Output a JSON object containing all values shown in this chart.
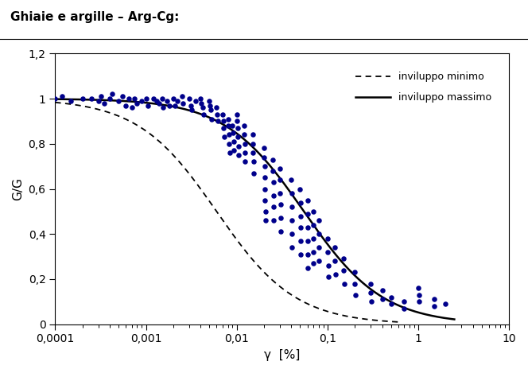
{
  "title": "Ghiaie e argille – Arg-Cg:",
  "xlabel": "γ  [%]",
  "ylabel": "G/G",
  "xlim": [
    0.0001,
    10
  ],
  "ylim": [
    0,
    1.2
  ],
  "yticks": [
    0,
    0.2,
    0.4,
    0.6,
    0.8,
    1.0,
    1.2
  ],
  "ytick_labels": [
    "0",
    "0,2",
    "0,4",
    "0,6",
    "0,8",
    "1",
    "1,2"
  ],
  "xtick_labels": [
    "0,0001",
    "0,001",
    "0,01",
    "0,1",
    "1",
    "10"
  ],
  "dot_color": "#00008B",
  "curve_color": "#000000",
  "bg_color": "#ffffff",
  "legend_dashed": "inviluppo minimo",
  "legend_solid": "inviluppo massimo",
  "gamma_ref_min": 0.006,
  "gamma_ref_max": 0.055,
  "alpha_min": 1.0,
  "alpha_max": 1.0,
  "scatter_points": [
    [
      0.0001,
      1.0
    ],
    [
      0.00012,
      1.01
    ],
    [
      0.00015,
      0.99
    ],
    [
      0.0002,
      1.0
    ],
    [
      0.00025,
      1.0
    ],
    [
      0.0003,
      0.99
    ],
    [
      0.00032,
      1.01
    ],
    [
      0.00035,
      0.98
    ],
    [
      0.0004,
      1.0
    ],
    [
      0.00042,
      1.02
    ],
    [
      0.0005,
      0.99
    ],
    [
      0.00055,
      1.01
    ],
    [
      0.0006,
      0.97
    ],
    [
      0.00065,
      1.0
    ],
    [
      0.0007,
      0.96
    ],
    [
      0.00075,
      1.0
    ],
    [
      0.0008,
      0.98
    ],
    [
      0.0009,
      0.99
    ],
    [
      0.001,
      1.0
    ],
    [
      0.00105,
      0.97
    ],
    [
      0.0012,
      1.0
    ],
    [
      0.0013,
      0.99
    ],
    [
      0.0014,
      0.98
    ],
    [
      0.0015,
      1.0
    ],
    [
      0.00155,
      0.96
    ],
    [
      0.0017,
      0.99
    ],
    [
      0.0018,
      0.97
    ],
    [
      0.002,
      1.0
    ],
    [
      0.0021,
      0.97
    ],
    [
      0.0022,
      0.99
    ],
    [
      0.0025,
      1.01
    ],
    [
      0.00255,
      0.98
    ],
    [
      0.003,
      1.0
    ],
    [
      0.0031,
      0.97
    ],
    [
      0.0032,
      0.95
    ],
    [
      0.0035,
      0.99
    ],
    [
      0.004,
      1.0
    ],
    [
      0.0041,
      0.98
    ],
    [
      0.0042,
      0.96
    ],
    [
      0.0043,
      0.93
    ],
    [
      0.005,
      0.99
    ],
    [
      0.0051,
      0.97
    ],
    [
      0.0052,
      0.95
    ],
    [
      0.0053,
      0.91
    ],
    [
      0.006,
      0.96
    ],
    [
      0.0061,
      0.93
    ],
    [
      0.0062,
      0.9
    ],
    [
      0.007,
      0.93
    ],
    [
      0.0071,
      0.9
    ],
    [
      0.0072,
      0.87
    ],
    [
      0.0073,
      0.83
    ],
    [
      0.008,
      0.91
    ],
    [
      0.0081,
      0.88
    ],
    [
      0.0082,
      0.84
    ],
    [
      0.0083,
      0.8
    ],
    [
      0.0084,
      0.76
    ],
    [
      0.009,
      0.88
    ],
    [
      0.0091,
      0.85
    ],
    [
      0.0092,
      0.81
    ],
    [
      0.0093,
      0.77
    ],
    [
      0.01,
      0.93
    ],
    [
      0.0101,
      0.9
    ],
    [
      0.0102,
      0.87
    ],
    [
      0.0103,
      0.83
    ],
    [
      0.0104,
      0.79
    ],
    [
      0.0105,
      0.75
    ],
    [
      0.012,
      0.88
    ],
    [
      0.0121,
      0.84
    ],
    [
      0.0122,
      0.8
    ],
    [
      0.0123,
      0.76
    ],
    [
      0.0124,
      0.72
    ],
    [
      0.015,
      0.84
    ],
    [
      0.0151,
      0.8
    ],
    [
      0.0152,
      0.76
    ],
    [
      0.0153,
      0.72
    ],
    [
      0.0154,
      0.67
    ],
    [
      0.02,
      0.78
    ],
    [
      0.0201,
      0.74
    ],
    [
      0.0202,
      0.7
    ],
    [
      0.0203,
      0.65
    ],
    [
      0.0204,
      0.6
    ],
    [
      0.0205,
      0.55
    ],
    [
      0.0206,
      0.5
    ],
    [
      0.0207,
      0.46
    ],
    [
      0.025,
      0.73
    ],
    [
      0.0251,
      0.68
    ],
    [
      0.0252,
      0.63
    ],
    [
      0.0253,
      0.57
    ],
    [
      0.0254,
      0.52
    ],
    [
      0.0255,
      0.46
    ],
    [
      0.03,
      0.69
    ],
    [
      0.0301,
      0.64
    ],
    [
      0.0302,
      0.58
    ],
    [
      0.0303,
      0.53
    ],
    [
      0.0304,
      0.47
    ],
    [
      0.0305,
      0.41
    ],
    [
      0.04,
      0.64
    ],
    [
      0.0401,
      0.58
    ],
    [
      0.0402,
      0.52
    ],
    [
      0.0403,
      0.46
    ],
    [
      0.0404,
      0.4
    ],
    [
      0.0405,
      0.34
    ],
    [
      0.05,
      0.6
    ],
    [
      0.0501,
      0.54
    ],
    [
      0.0502,
      0.48
    ],
    [
      0.0503,
      0.43
    ],
    [
      0.0504,
      0.37
    ],
    [
      0.0505,
      0.31
    ],
    [
      0.06,
      0.55
    ],
    [
      0.0601,
      0.49
    ],
    [
      0.0602,
      0.43
    ],
    [
      0.0603,
      0.37
    ],
    [
      0.0604,
      0.31
    ],
    [
      0.0605,
      0.25
    ],
    [
      0.07,
      0.5
    ],
    [
      0.0701,
      0.44
    ],
    [
      0.0702,
      0.38
    ],
    [
      0.0703,
      0.32
    ],
    [
      0.0704,
      0.27
    ],
    [
      0.08,
      0.46
    ],
    [
      0.0801,
      0.4
    ],
    [
      0.0802,
      0.34
    ],
    [
      0.0803,
      0.28
    ],
    [
      0.1,
      0.38
    ],
    [
      0.101,
      0.32
    ],
    [
      0.102,
      0.26
    ],
    [
      0.103,
      0.21
    ],
    [
      0.12,
      0.34
    ],
    [
      0.121,
      0.28
    ],
    [
      0.122,
      0.22
    ],
    [
      0.15,
      0.29
    ],
    [
      0.151,
      0.24
    ],
    [
      0.152,
      0.18
    ],
    [
      0.2,
      0.23
    ],
    [
      0.201,
      0.18
    ],
    [
      0.202,
      0.13
    ],
    [
      0.3,
      0.18
    ],
    [
      0.301,
      0.14
    ],
    [
      0.302,
      0.1
    ],
    [
      0.4,
      0.15
    ],
    [
      0.401,
      0.11
    ],
    [
      0.5,
      0.12
    ],
    [
      0.501,
      0.09
    ],
    [
      0.7,
      0.1
    ],
    [
      0.701,
      0.07
    ],
    [
      1.0,
      0.16
    ],
    [
      1.01,
      0.13
    ],
    [
      1.02,
      0.1
    ],
    [
      1.5,
      0.11
    ],
    [
      1.51,
      0.08
    ],
    [
      2.0,
      0.09
    ]
  ]
}
